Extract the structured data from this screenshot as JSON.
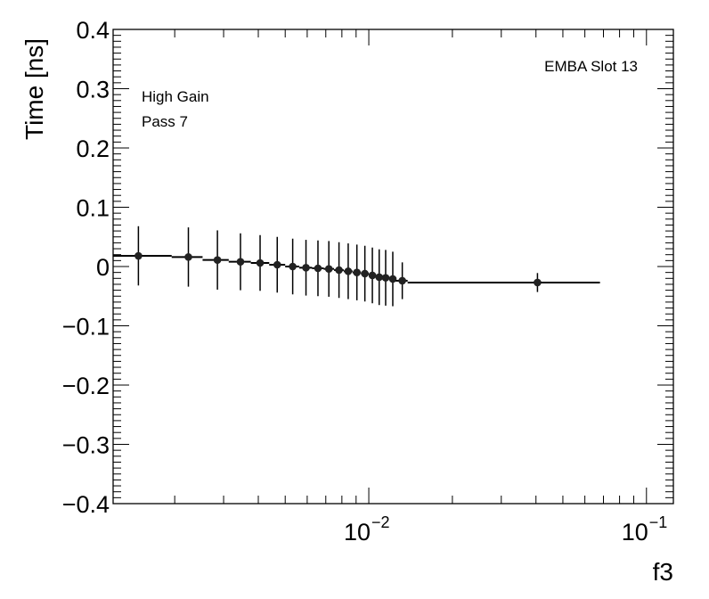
{
  "chart_data": {
    "type": "scatter",
    "xscale": "log",
    "xlim": [
      0.0012,
      0.125
    ],
    "ylim": [
      -0.4,
      0.4
    ],
    "xlabel": "f3",
    "ylabel": "Time [ns]",
    "y_ticks": [
      "0.4",
      "0.3",
      "0.2",
      "0.1",
      "0",
      "−0.1",
      "−0.2",
      "−0.3",
      "−0.4"
    ],
    "y_tick_values": [
      0.4,
      0.3,
      0.2,
      0.1,
      0,
      -0.1,
      -0.2,
      -0.3,
      -0.4
    ],
    "x_ticks": [
      {
        "base": "10",
        "exp": "−2",
        "value": 0.01
      },
      {
        "base": "10",
        "exp": "−1",
        "value": 0.1
      }
    ],
    "annotations": {
      "top_right": "EMBA Slot 13",
      "line1": "High Gain",
      "line2": "Pass 7"
    },
    "points": [
      {
        "x": 0.00148,
        "xlo": 0.0012,
        "xhi": 0.00195,
        "y": 0.018,
        "err": 0.05
      },
      {
        "x": 0.00224,
        "xlo": 0.00195,
        "xhi": 0.00252,
        "y": 0.016,
        "err": 0.05
      },
      {
        "x": 0.00285,
        "xlo": 0.00252,
        "xhi": 0.00313,
        "y": 0.011,
        "err": 0.05
      },
      {
        "x": 0.00345,
        "xlo": 0.00313,
        "xhi": 0.00376,
        "y": 0.008,
        "err": 0.048
      },
      {
        "x": 0.00406,
        "xlo": 0.00376,
        "xhi": 0.00438,
        "y": 0.006,
        "err": 0.047
      },
      {
        "x": 0.00468,
        "xlo": 0.00438,
        "xhi": 0.005,
        "y": 0.003,
        "err": 0.047
      },
      {
        "x": 0.00532,
        "xlo": 0.005,
        "xhi": 0.00562,
        "y": 0.0,
        "err": 0.047
      },
      {
        "x": 0.00594,
        "xlo": 0.00562,
        "xhi": 0.00625,
        "y": -0.002,
        "err": 0.047
      },
      {
        "x": 0.00656,
        "xlo": 0.00625,
        "xhi": 0.00688,
        "y": -0.003,
        "err": 0.047
      },
      {
        "x": 0.00718,
        "xlo": 0.00688,
        "xhi": 0.0075,
        "y": -0.004,
        "err": 0.047
      },
      {
        "x": 0.00781,
        "xlo": 0.0075,
        "xhi": 0.00812,
        "y": -0.006,
        "err": 0.047
      },
      {
        "x": 0.00843,
        "xlo": 0.00812,
        "xhi": 0.00874,
        "y": -0.008,
        "err": 0.047
      },
      {
        "x": 0.00906,
        "xlo": 0.00874,
        "xhi": 0.00937,
        "y": -0.01,
        "err": 0.047
      },
      {
        "x": 0.00968,
        "xlo": 0.00937,
        "xhi": 0.01,
        "y": -0.012,
        "err": 0.047
      },
      {
        "x": 0.0103,
        "xlo": 0.01,
        "xhi": 0.0106,
        "y": -0.015,
        "err": 0.047
      },
      {
        "x": 0.0109,
        "xlo": 0.0106,
        "xhi": 0.0112,
        "y": -0.018,
        "err": 0.047
      },
      {
        "x": 0.0115,
        "xlo": 0.0112,
        "xhi": 0.0119,
        "y": -0.019,
        "err": 0.047
      },
      {
        "x": 0.0122,
        "xlo": 0.0119,
        "xhi": 0.0125,
        "y": -0.021,
        "err": 0.046
      },
      {
        "x": 0.0132,
        "xlo": 0.0125,
        "xhi": 0.0138,
        "y": -0.024,
        "err": 0.031
      },
      {
        "x": 0.0405,
        "xlo": 0.0138,
        "xhi": 0.068,
        "y": -0.027,
        "err": 0.016
      }
    ]
  }
}
